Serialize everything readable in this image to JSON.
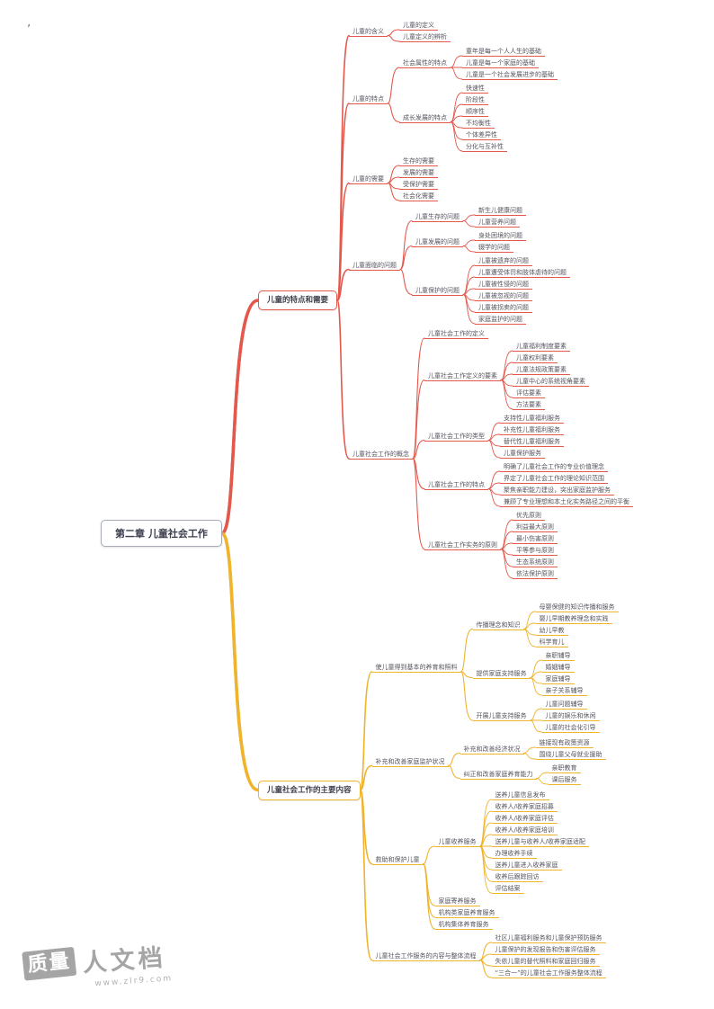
{
  "page": {
    "decor_mark": "’"
  },
  "root": {
    "label": "第二章 儿童社会工作"
  },
  "colors": {
    "branch_red": "#e4584c",
    "branch_yellow": "#f0b32c",
    "text": "#54555f",
    "root_border": "#a6abb6",
    "watermark_gray": "#a5a5a5"
  },
  "watermark": {
    "logo": "质量",
    "name": "人文档",
    "url": "www.zlr9.com"
  },
  "branches": [
    {
      "label": "儿童的特点和需要",
      "color": "#e4584c",
      "children": [
        {
          "label": "儿童的含义",
          "children": [
            {
              "label": "儿童的定义"
            },
            {
              "label": "儿童定义的辨析"
            }
          ]
        },
        {
          "label": "儿童的特点",
          "children": [
            {
              "label": "社会属性的特点",
              "children": [
                {
                  "label": "童年是每一个人人生的基础"
                },
                {
                  "label": "儿童是每一个家庭的基础"
                },
                {
                  "label": "儿童是一个社会发展进步的基础"
                }
              ]
            },
            {
              "label": "成长发展的特点",
              "children": [
                {
                  "label": "快速性"
                },
                {
                  "label": "阶段性"
                },
                {
                  "label": "顺序性"
                },
                {
                  "label": "不均衡性"
                },
                {
                  "label": "个体差异性"
                },
                {
                  "label": "分化与互补性"
                }
              ]
            }
          ]
        },
        {
          "label": "儿童的需要",
          "children": [
            {
              "label": "生存的需要"
            },
            {
              "label": "发展的需要"
            },
            {
              "label": "受保护需要"
            },
            {
              "label": "社会化需要"
            }
          ]
        },
        {
          "label": "儿童面临的问题",
          "children": [
            {
              "label": "儿童生存的问题",
              "children": [
                {
                  "label": "新生儿健康问题"
                },
                {
                  "label": "儿童营养问题"
                }
              ]
            },
            {
              "label": "儿童发展的问题",
              "children": [
                {
                  "label": "身处困境的问题"
                },
                {
                  "label": "辍学的问题"
                }
              ]
            },
            {
              "label": "儿童保护的问题",
              "children": [
                {
                  "label": "儿童被遗弃的问题"
                },
                {
                  "label": "儿童遭受体罚和肢体虐待的问题"
                },
                {
                  "label": "儿童被性侵的问题"
                },
                {
                  "label": "儿童被忽视的问题"
                },
                {
                  "label": "儿童被拐卖的问题"
                },
                {
                  "label": "家庭监护的问题"
                }
              ]
            }
          ]
        },
        {
          "label": "儿童社会工作的概念",
          "children": [
            {
              "label": "儿童社会工作的定义"
            },
            {
              "label": "儿童社会工作定义的要素",
              "children": [
                {
                  "label": "儿童福利制度要素"
                },
                {
                  "label": "儿童权利要素"
                },
                {
                  "label": "儿童法规政策要素"
                },
                {
                  "label": "儿童中心的系统视角要素"
                },
                {
                  "label": "评估要素"
                },
                {
                  "label": "方法要素"
                }
              ]
            },
            {
              "label": "儿童社会工作的类型",
              "children": [
                {
                  "label": "支持性儿童福利服务"
                },
                {
                  "label": "补充性儿童福利服务"
                },
                {
                  "label": "替代性儿童福利服务"
                },
                {
                  "label": "儿童保护服务"
                }
              ]
            },
            {
              "label": "儿童社会工作的特点",
              "children": [
                {
                  "label": "明确了儿童社会工作的专业价值理念"
                },
                {
                  "label": "界定了儿童社会工作的理论知识范围"
                },
                {
                  "label": "聚焦亲职能力建设，突出家庭监护服务"
                },
                {
                  "label": "兼顾了专业理想和本土化实务路径之间的平衡"
                }
              ]
            },
            {
              "label": "儿童社会工作实务的原则",
              "children": [
                {
                  "label": "优先原则"
                },
                {
                  "label": "利益最大原则"
                },
                {
                  "label": "最小伤害原则"
                },
                {
                  "label": "平等参与原则"
                },
                {
                  "label": "生态系统原则"
                },
                {
                  "label": "依法保护原则"
                }
              ]
            }
          ]
        }
      ]
    },
    {
      "label": "儿童社会工作的主要内容",
      "color": "#f0b32c",
      "children": [
        {
          "label": "使儿童得到基本的养育和照料",
          "children": [
            {
              "label": "传播理念和知识",
              "children": [
                {
                  "label": "母婴保健的知识传播和服务"
                },
                {
                  "label": "婴儿早期教养理念和实践"
                },
                {
                  "label": "幼儿早教"
                },
                {
                  "label": "科学育儿"
                }
              ]
            },
            {
              "label": "提供家庭支持服务",
              "children": [
                {
                  "label": "亲职辅导"
                },
                {
                  "label": "婚姻辅导"
                },
                {
                  "label": "家庭辅导"
                },
                {
                  "label": "亲子关系辅导"
                }
              ]
            },
            {
              "label": "开展儿童支持服务",
              "children": [
                {
                  "label": "儿童问题辅导"
                },
                {
                  "label": "儿童的娱乐和休闲"
                },
                {
                  "label": "儿童的社会化引导"
                }
              ]
            }
          ]
        },
        {
          "label": "补充和改善家庭监护状况",
          "children": [
            {
              "label": "补充和改善经济状况",
              "children": [
                {
                  "label": "链接现有政策资源"
                },
                {
                  "label": "围绕儿童父母就业援助"
                }
              ]
            },
            {
              "label": "纠正和改善家庭养育能力",
              "children": [
                {
                  "label": "亲职教育"
                },
                {
                  "label": "课后服务"
                }
              ]
            }
          ]
        },
        {
          "label": "救助和保护儿童",
          "children": [
            {
              "label": "儿童收养服务",
              "children": [
                {
                  "label": "送养儿童信息发布"
                },
                {
                  "label": "收养人/收养家庭招募"
                },
                {
                  "label": "收养人/收养家庭评估"
                },
                {
                  "label": "收养人/收养家庭培训"
                },
                {
                  "label": "送养儿童与收养人/收养家庭适配"
                },
                {
                  "label": "办理收养手续"
                },
                {
                  "label": "送养儿童进入收养家庭"
                },
                {
                  "label": "收养后跟踪回访"
                },
                {
                  "label": "评估结案"
                }
              ]
            },
            {
              "label": "家庭寄养服务"
            },
            {
              "label": "机构类家庭养育服务"
            },
            {
              "label": "机构集体养育服务"
            }
          ]
        },
        {
          "label": "儿童社会工作服务的内容与整体流程",
          "children": [
            {
              "label": "社区儿童福利服务和儿童保护预防服务"
            },
            {
              "label": "儿童保护的发现报告和伤害评估服务"
            },
            {
              "label": "失依儿童的替代照料和家庭回归服务"
            },
            {
              "label": "“三合一”的儿童社会工作服务整体流程"
            }
          ]
        }
      ]
    }
  ]
}
